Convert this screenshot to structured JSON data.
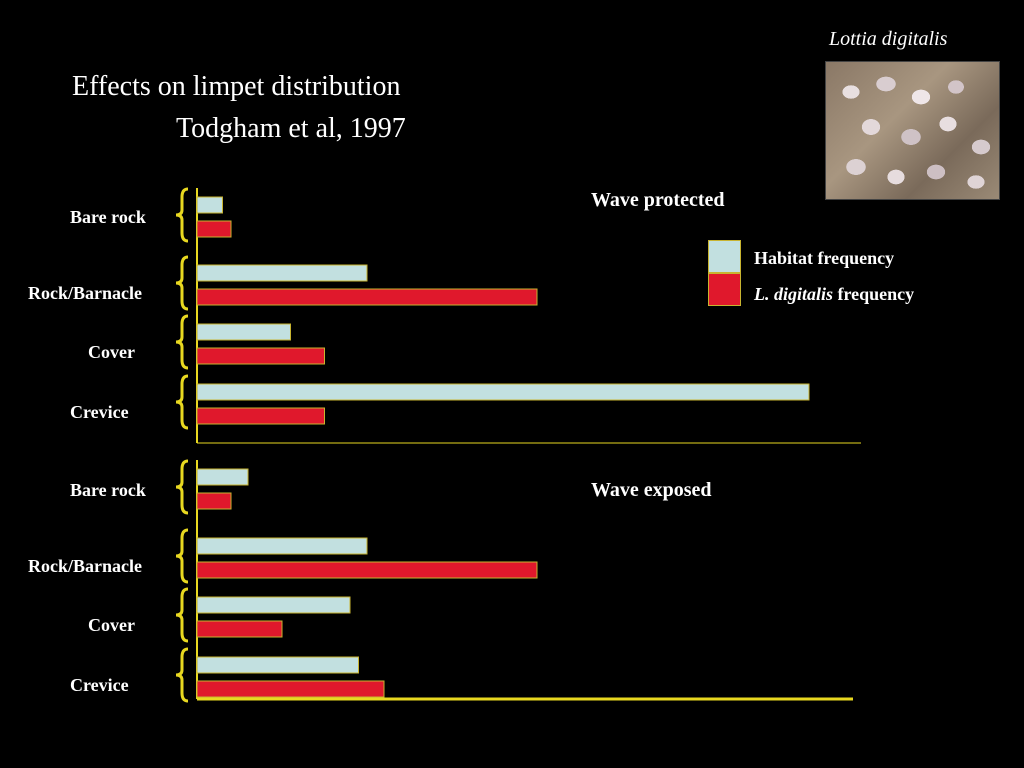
{
  "slide": {
    "title": "Effects on limpet distribution",
    "subtitle": "Todgham et al, 1997",
    "photo_caption": "Lottia digitalis"
  },
  "legend": {
    "habitat_label": "Habitat frequency",
    "species_label_italic": "L. digitalis",
    "species_label_rest": " frequency"
  },
  "colors": {
    "habitat": "#c2e0e0",
    "species": "#e0182c",
    "axis": "#e8d820",
    "bar_border": "#c8b430"
  },
  "chart_data": [
    {
      "type": "bar",
      "orientation": "horizontal",
      "title": "Wave protected",
      "categories": [
        "Bare rock",
        "Rock/Barnacle",
        "Cover",
        "Crevice"
      ],
      "series": [
        {
          "name": "Habitat frequency",
          "values": [
            3,
            20,
            11,
            72
          ]
        },
        {
          "name": "L. digitalis frequency",
          "values": [
            4,
            40,
            15,
            15
          ]
        }
      ],
      "xlim": [
        0,
        78
      ]
    },
    {
      "type": "bar",
      "orientation": "horizontal",
      "title": "Wave exposed",
      "categories": [
        "Bare rock",
        "Rock/Barnacle",
        "Cover",
        "Crevice"
      ],
      "series": [
        {
          "name": "Habitat frequency",
          "values": [
            6,
            20,
            18,
            19
          ]
        },
        {
          "name": "L. digitalis frequency",
          "values": [
            4,
            40,
            10,
            22
          ]
        }
      ],
      "xlim": [
        0,
        78
      ]
    }
  ]
}
